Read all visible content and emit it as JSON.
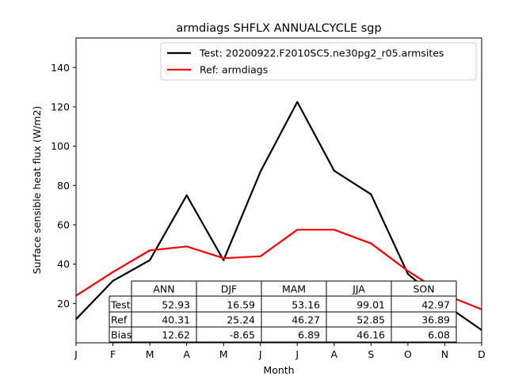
{
  "chart_data": {
    "type": "line",
    "title": "armdiags SHFLX ANNUALCYCLE sgp",
    "xlabel": "Month",
    "ylabel": "Surface sensible heat flux (W/m2)",
    "ylim": [
      0,
      155
    ],
    "yticks": [
      20,
      40,
      60,
      80,
      100,
      120,
      140
    ],
    "categories": [
      "J",
      "F",
      "M",
      "A",
      "M",
      "J",
      "J",
      "A",
      "S",
      "O",
      "N",
      "D"
    ],
    "series": [
      {
        "name": "Test: 20200922.F2010SC5.ne30pg2_r05.armsites",
        "color": "#000000",
        "values": [
          12.0,
          31.5,
          42.0,
          75.0,
          42.0,
          87.0,
          122.5,
          87.5,
          75.5,
          35.0,
          19.5,
          6.5
        ]
      },
      {
        "name": "Ref: armdiags",
        "color": "#ff0000",
        "values": [
          24.0,
          36.0,
          47.0,
          49.0,
          43.0,
          44.0,
          57.5,
          57.5,
          50.5,
          36.5,
          24.5,
          17.0
        ]
      }
    ],
    "legend_location": "top-right",
    "grid": false,
    "table": {
      "columns": [
        "ANN",
        "DJF",
        "MAM",
        "JJA",
        "SON"
      ],
      "rows": [
        {
          "label": "Test",
          "values": [
            "52.93",
            "16.59",
            "53.16",
            "99.01",
            "42.97"
          ]
        },
        {
          "label": "Ref",
          "values": [
            "40.31",
            "25.24",
            "46.27",
            "52.85",
            "36.89"
          ]
        },
        {
          "label": "Bias",
          "values": [
            "12.62",
            "-8.65",
            "6.89",
            "46.16",
            "6.08"
          ]
        }
      ]
    }
  }
}
